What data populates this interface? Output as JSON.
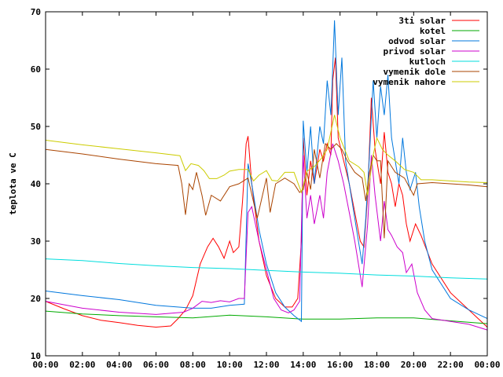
{
  "chart_data": {
    "type": "line",
    "title": "",
    "xlabel": "",
    "ylabel": "teplota ve C",
    "xlim": [
      0,
      24
    ],
    "ylim": [
      10,
      70
    ],
    "grid": false,
    "legend_position": "top-right",
    "x_ticks": [
      {
        "value": 0,
        "label": "00:00"
      },
      {
        "value": 2,
        "label": "02:00"
      },
      {
        "value": 4,
        "label": "04:00"
      },
      {
        "value": 6,
        "label": "06:00"
      },
      {
        "value": 8,
        "label": "08:00"
      },
      {
        "value": 10,
        "label": "10:00"
      },
      {
        "value": 12,
        "label": "12:00"
      },
      {
        "value": 14,
        "label": "14:00"
      },
      {
        "value": 16,
        "label": "16:00"
      },
      {
        "value": 18,
        "label": "18:00"
      },
      {
        "value": 20,
        "label": "20:00"
      },
      {
        "value": 22,
        "label": "22:00"
      },
      {
        "value": 24,
        "label": "00:00"
      }
    ],
    "y_ticks": [
      {
        "value": 10,
        "label": "10"
      },
      {
        "value": 20,
        "label": "20"
      },
      {
        "value": 30,
        "label": "30"
      },
      {
        "value": 40,
        "label": "40"
      },
      {
        "value": 50,
        "label": "50"
      },
      {
        "value": 60,
        "label": "60"
      },
      {
        "value": 70,
        "label": "70"
      }
    ],
    "series": [
      {
        "name": "3ti solar",
        "color": "#ff0000",
        "points": [
          [
            0,
            19.5
          ],
          [
            1,
            18.2
          ],
          [
            2,
            17.0
          ],
          [
            3,
            16.2
          ],
          [
            4,
            15.8
          ],
          [
            5,
            15.3
          ],
          [
            6,
            15.0
          ],
          [
            6.8,
            15.2
          ],
          [
            7.2,
            16.5
          ],
          [
            7.6,
            18.0
          ],
          [
            8,
            20.5
          ],
          [
            8.4,
            26
          ],
          [
            8.8,
            29
          ],
          [
            9.1,
            30.5
          ],
          [
            9.4,
            29
          ],
          [
            9.7,
            27
          ],
          [
            10,
            30
          ],
          [
            10.2,
            28
          ],
          [
            10.5,
            29
          ],
          [
            10.7,
            37
          ],
          [
            10.9,
            47
          ],
          [
            11,
            48.3
          ],
          [
            11.2,
            40
          ],
          [
            11.6,
            30
          ],
          [
            12,
            24
          ],
          [
            12.5,
            20
          ],
          [
            13,
            18.5
          ],
          [
            13.4,
            18.5
          ],
          [
            13.7,
            20
          ],
          [
            13.9,
            30
          ],
          [
            14,
            48
          ],
          [
            14.2,
            38
          ],
          [
            14.4,
            44
          ],
          [
            14.6,
            40
          ],
          [
            14.9,
            46
          ],
          [
            15.1,
            44
          ],
          [
            15.3,
            47
          ],
          [
            15.5,
            45
          ],
          [
            15.6,
            58
          ],
          [
            15.75,
            62
          ],
          [
            15.9,
            48
          ],
          [
            16.2,
            44
          ],
          [
            16.5,
            40
          ],
          [
            16.8,
            35
          ],
          [
            17.1,
            30
          ],
          [
            17.3,
            29
          ],
          [
            17.5,
            38
          ],
          [
            17.7,
            55
          ],
          [
            17.9,
            46
          ],
          [
            18.2,
            40
          ],
          [
            18.4,
            49
          ],
          [
            18.6,
            42
          ],
          [
            18.8,
            40
          ],
          [
            19.0,
            36
          ],
          [
            19.2,
            40
          ],
          [
            19.4,
            38
          ],
          [
            19.6,
            33
          ],
          [
            19.8,
            30
          ],
          [
            20.1,
            33
          ],
          [
            20.4,
            31
          ],
          [
            21,
            26
          ],
          [
            22,
            21
          ],
          [
            23,
            18
          ],
          [
            24,
            15
          ]
        ]
      },
      {
        "name": "kotel",
        "color": "#00aa00",
        "points": [
          [
            0,
            17.8
          ],
          [
            2,
            17.3
          ],
          [
            4,
            17.0
          ],
          [
            6,
            16.8
          ],
          [
            8,
            16.6
          ],
          [
            10,
            17.1
          ],
          [
            12,
            16.8
          ],
          [
            14,
            16.4
          ],
          [
            16,
            16.4
          ],
          [
            18,
            16.6
          ],
          [
            20,
            16.6
          ],
          [
            22,
            16.1
          ],
          [
            24,
            15.6
          ]
        ]
      },
      {
        "name": "odvod solar",
        "color": "#0077dd",
        "points": [
          [
            0,
            21.3
          ],
          [
            2,
            20.5
          ],
          [
            4,
            19.8
          ],
          [
            6,
            18.8
          ],
          [
            8,
            18.3
          ],
          [
            9,
            18.3
          ],
          [
            10,
            18.8
          ],
          [
            10.8,
            19
          ],
          [
            11,
            43.5
          ],
          [
            11.2,
            40
          ],
          [
            11.6,
            32
          ],
          [
            12,
            26
          ],
          [
            12.5,
            21
          ],
          [
            13,
            18.5
          ],
          [
            13.5,
            17
          ],
          [
            13.9,
            16
          ],
          [
            14,
            51
          ],
          [
            14.2,
            42
          ],
          [
            14.4,
            50
          ],
          [
            14.6,
            40
          ],
          [
            14.9,
            50
          ],
          [
            15.1,
            47
          ],
          [
            15.3,
            58
          ],
          [
            15.5,
            52
          ],
          [
            15.6,
            60
          ],
          [
            15.7,
            68.5
          ],
          [
            15.9,
            52
          ],
          [
            16.1,
            62
          ],
          [
            16.3,
            44
          ],
          [
            16.6,
            38
          ],
          [
            16.9,
            32
          ],
          [
            17.2,
            26
          ],
          [
            17.4,
            34
          ],
          [
            17.6,
            45
          ],
          [
            17.8,
            58
          ],
          [
            18,
            48
          ],
          [
            18.2,
            57
          ],
          [
            18.4,
            52
          ],
          [
            18.6,
            59
          ],
          [
            18.8,
            48
          ],
          [
            19,
            44
          ],
          [
            19.2,
            40
          ],
          [
            19.4,
            48
          ],
          [
            19.6,
            42
          ],
          [
            19.8,
            39
          ],
          [
            20.1,
            42
          ],
          [
            20.3,
            36
          ],
          [
            20.6,
            30
          ],
          [
            21,
            25
          ],
          [
            22,
            20
          ],
          [
            23,
            18
          ],
          [
            24,
            16.5
          ]
        ]
      },
      {
        "name": "privod solar",
        "color": "#cc00cc",
        "points": [
          [
            0,
            19.5
          ],
          [
            2,
            18.3
          ],
          [
            4,
            17.6
          ],
          [
            6,
            17.2
          ],
          [
            7.5,
            17.6
          ],
          [
            8,
            18.3
          ],
          [
            8.5,
            19.5
          ],
          [
            9,
            19.3
          ],
          [
            9.5,
            19.6
          ],
          [
            10,
            19.4
          ],
          [
            10.5,
            20
          ],
          [
            10.8,
            20
          ],
          [
            11,
            35
          ],
          [
            11.2,
            36
          ],
          [
            11.6,
            30
          ],
          [
            12,
            25
          ],
          [
            12.4,
            20
          ],
          [
            12.8,
            18
          ],
          [
            13.2,
            17.5
          ],
          [
            13.5,
            18
          ],
          [
            13.8,
            19.5
          ],
          [
            14,
            45
          ],
          [
            14.2,
            34
          ],
          [
            14.4,
            38
          ],
          [
            14.6,
            33
          ],
          [
            14.9,
            38
          ],
          [
            15.1,
            34
          ],
          [
            15.3,
            42
          ],
          [
            15.6,
            47
          ],
          [
            15.9,
            44
          ],
          [
            16.2,
            40
          ],
          [
            16.5,
            35
          ],
          [
            16.8,
            30
          ],
          [
            17.2,
            22
          ],
          [
            17.5,
            33
          ],
          [
            17.7,
            45
          ],
          [
            17.9,
            38
          ],
          [
            18.2,
            30
          ],
          [
            18.4,
            37
          ],
          [
            18.6,
            32
          ],
          [
            18.8,
            31
          ],
          [
            19.1,
            29
          ],
          [
            19.4,
            28
          ],
          [
            19.6,
            24.5
          ],
          [
            19.9,
            26
          ],
          [
            20.2,
            21
          ],
          [
            20.6,
            18
          ],
          [
            21,
            16.5
          ],
          [
            22,
            16
          ],
          [
            23,
            15.5
          ],
          [
            24,
            14.5
          ]
        ]
      },
      {
        "name": "kutloch",
        "color": "#00dddd",
        "points": [
          [
            0,
            26.9
          ],
          [
            2,
            26.6
          ],
          [
            4,
            26.1
          ],
          [
            6,
            25.7
          ],
          [
            8,
            25.4
          ],
          [
            10,
            25.2
          ],
          [
            12,
            24.9
          ],
          [
            14,
            24.6
          ],
          [
            16,
            24.4
          ],
          [
            18,
            24.1
          ],
          [
            20,
            23.9
          ],
          [
            22,
            23.6
          ],
          [
            24,
            23.4
          ]
        ]
      },
      {
        "name": "vymenik dole",
        "color": "#aa4400",
        "points": [
          [
            0,
            46
          ],
          [
            2,
            45.2
          ],
          [
            4,
            44.3
          ],
          [
            6,
            43.5
          ],
          [
            7.2,
            43.2
          ],
          [
            7.4,
            40
          ],
          [
            7.6,
            34.6
          ],
          [
            7.8,
            40
          ],
          [
            8,
            39
          ],
          [
            8.2,
            42
          ],
          [
            8.5,
            38
          ],
          [
            8.7,
            34.5
          ],
          [
            9,
            38
          ],
          [
            9.5,
            37
          ],
          [
            10,
            39.5
          ],
          [
            10.5,
            40
          ],
          [
            11,
            41
          ],
          [
            11.5,
            34
          ],
          [
            12,
            41
          ],
          [
            12.2,
            35
          ],
          [
            12.5,
            40
          ],
          [
            13,
            41
          ],
          [
            13.5,
            40
          ],
          [
            13.8,
            38.5
          ],
          [
            14,
            39
          ],
          [
            14.2,
            42
          ],
          [
            14.4,
            39
          ],
          [
            14.6,
            46
          ],
          [
            14.9,
            41
          ],
          [
            15.2,
            47
          ],
          [
            15.5,
            46
          ],
          [
            15.8,
            47
          ],
          [
            16.1,
            46
          ],
          [
            16.4,
            44
          ],
          [
            16.8,
            42
          ],
          [
            17.2,
            41
          ],
          [
            17.4,
            37
          ],
          [
            17.6,
            42
          ],
          [
            17.8,
            45
          ],
          [
            18,
            44
          ],
          [
            18.2,
            44
          ],
          [
            18.4,
            30.5
          ],
          [
            18.6,
            44
          ],
          [
            18.8,
            43
          ],
          [
            19,
            42
          ],
          [
            19.5,
            41
          ],
          [
            20,
            38
          ],
          [
            20.2,
            40
          ],
          [
            21,
            40.2
          ],
          [
            22,
            40
          ],
          [
            23,
            39.8
          ],
          [
            24,
            39.5
          ]
        ]
      },
      {
        "name": "vymenik nahore",
        "color": "#cccc00",
        "points": [
          [
            0,
            47.6
          ],
          [
            2,
            46.8
          ],
          [
            4,
            46.1
          ],
          [
            6,
            45.4
          ],
          [
            7.3,
            44.9
          ],
          [
            7.6,
            42.3
          ],
          [
            7.9,
            43.5
          ],
          [
            8.3,
            43.2
          ],
          [
            8.6,
            42.3
          ],
          [
            8.9,
            40.9
          ],
          [
            9.3,
            40.9
          ],
          [
            9.7,
            41.5
          ],
          [
            10,
            42.2
          ],
          [
            10.5,
            42.5
          ],
          [
            11,
            42.5
          ],
          [
            11.3,
            40.5
          ],
          [
            11.6,
            41.5
          ],
          [
            12,
            42.3
          ],
          [
            12.3,
            40.6
          ],
          [
            12.6,
            40.5
          ],
          [
            13,
            42
          ],
          [
            13.5,
            42
          ],
          [
            13.9,
            38.5
          ],
          [
            14.2,
            42.2
          ],
          [
            14.6,
            43
          ],
          [
            15,
            44.5
          ],
          [
            15.3,
            46
          ],
          [
            15.7,
            52
          ],
          [
            16,
            48
          ],
          [
            16.5,
            44
          ],
          [
            17,
            43
          ],
          [
            17.3,
            42
          ],
          [
            17.5,
            38
          ],
          [
            17.8,
            45
          ],
          [
            18,
            48
          ],
          [
            18.3,
            46
          ],
          [
            18.6,
            45
          ],
          [
            19,
            44
          ],
          [
            19.5,
            42.5
          ],
          [
            20,
            42
          ],
          [
            20.4,
            40.7
          ],
          [
            21,
            40.7
          ],
          [
            22,
            40.5
          ],
          [
            23,
            40.3
          ],
          [
            24,
            40.2
          ]
        ]
      }
    ]
  }
}
